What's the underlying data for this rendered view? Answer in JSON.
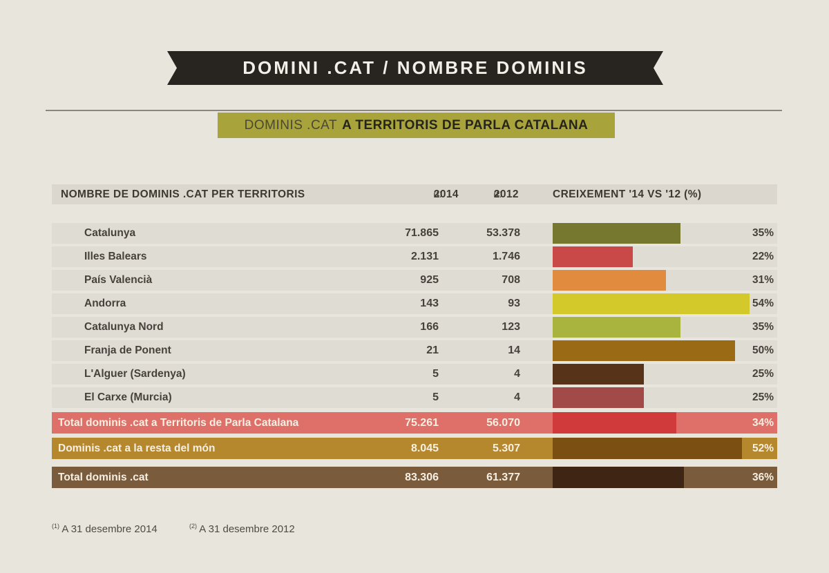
{
  "page": {
    "bg": "#E8E5DD"
  },
  "ribbon": {
    "title": "DOMINI .CAT / NOMBRE DOMINIS",
    "bg": "#28241F",
    "text_color": "#F2EFE8"
  },
  "subtitle": {
    "normal": "DOMINIS .CAT",
    "bold": "A TERRITORIS DE PARLA CATALANA",
    "bg": "#A9A33C"
  },
  "table": {
    "header": {
      "territory": "NOMBRE DE DOMINIS .CAT PER TERRITORIS",
      "y2014": "2014",
      "sup2014": "(1)",
      "y2012": "2012",
      "sup2012": "(2)",
      "growth": "CREIXEMENT '14 VS '12 (%)"
    },
    "rows": [
      {
        "name": "Catalunya",
        "v2014": "71.865",
        "v2012": "53.378",
        "pct": 35,
        "pct_label": "35%",
        "color": "#75782E"
      },
      {
        "name": "Illes Balears",
        "v2014": "2.131",
        "v2012": "1.746",
        "pct": 22,
        "pct_label": "22%",
        "color": "#C94948"
      },
      {
        "name": "País Valencià",
        "v2014": "925",
        "v2012": "708",
        "pct": 31,
        "pct_label": "31%",
        "color": "#E08B3E"
      },
      {
        "name": "Andorra",
        "v2014": "143",
        "v2012": "93",
        "pct": 54,
        "pct_label": "54%",
        "color": "#D3C92B"
      },
      {
        "name": "Catalunya Nord",
        "v2014": "166",
        "v2012": "123",
        "pct": 35,
        "pct_label": "35%",
        "color": "#A8B43D"
      },
      {
        "name": "Franja de Ponent",
        "v2014": "21",
        "v2012": "14",
        "pct": 50,
        "pct_label": "50%",
        "color": "#9A6A14"
      },
      {
        "name": "L'Alguer (Sardenya)",
        "v2014": "5",
        "v2012": "4",
        "pct": 25,
        "pct_label": "25%",
        "color": "#57331A"
      },
      {
        "name": "El Carxe (Murcia)",
        "v2014": "5",
        "v2012": "4",
        "pct": 25,
        "pct_label": "25%",
        "color": "#A14A48"
      }
    ],
    "totals": [
      {
        "name": "Total dominis .cat a Territoris de Parla Catalana",
        "v2014": "75.261",
        "v2012": "56.070",
        "pct": 34,
        "pct_label": "34%",
        "row_bg": "#DF6F69",
        "bar_color": "#D03A3B"
      },
      {
        "name": "Dominis .cat a la resta del món",
        "v2014": "8.045",
        "v2012": "5.307",
        "pct": 52,
        "pct_label": "52%",
        "row_bg": "#B5882D",
        "bar_color": "#7B4E12"
      },
      {
        "name": "Total dominis .cat",
        "v2014": "83.306",
        "v2012": "61.377",
        "pct": 36,
        "pct_label": "36%",
        "row_bg": "#7A5B3C",
        "bar_color": "#3F2513"
      }
    ]
  },
  "footnotes": [
    {
      "sup": "(1)",
      "text": "A 31 desembre 2014"
    },
    {
      "sup": "(2)",
      "text": "A 31 desembre 2012"
    }
  ],
  "chart_data": {
    "type": "bar",
    "title": "DOMINIS .CAT A TERRITORIS DE PARLA CATALANA",
    "subtitle": "DOMINI .CAT / NOMBRE DOMINIS",
    "categories": [
      "Catalunya",
      "Illes Balears",
      "País Valencià",
      "Andorra",
      "Catalunya Nord",
      "Franja de Ponent",
      "L'Alguer (Sardenya)",
      "El Carxe (Murcia)"
    ],
    "series": [
      {
        "name": "2014",
        "values": [
          71865,
          2131,
          925,
          143,
          166,
          21,
          5,
          5
        ]
      },
      {
        "name": "2012",
        "values": [
          53378,
          1746,
          708,
          93,
          123,
          14,
          4,
          4
        ]
      },
      {
        "name": "Creixement '14 vs '12 (%)",
        "values": [
          35,
          22,
          31,
          54,
          35,
          50,
          25,
          25
        ]
      }
    ],
    "totals": [
      {
        "name": "Total dominis .cat a Territoris de Parla Catalana",
        "v2014": 75261,
        "v2012": 56070,
        "growth_pct": 34
      },
      {
        "name": "Dominis .cat a la resta del món",
        "v2014": 8045,
        "v2012": 5307,
        "growth_pct": 52
      },
      {
        "name": "Total dominis .cat",
        "v2014": 83306,
        "v2012": 61377,
        "growth_pct": 36
      }
    ],
    "xlabel": "CREIXEMENT '14 VS '12 (%)",
    "bar_scale_max": 54,
    "xlim": [
      0,
      54
    ],
    "grid": false,
    "legend": "none",
    "orientation": "horizontal"
  }
}
